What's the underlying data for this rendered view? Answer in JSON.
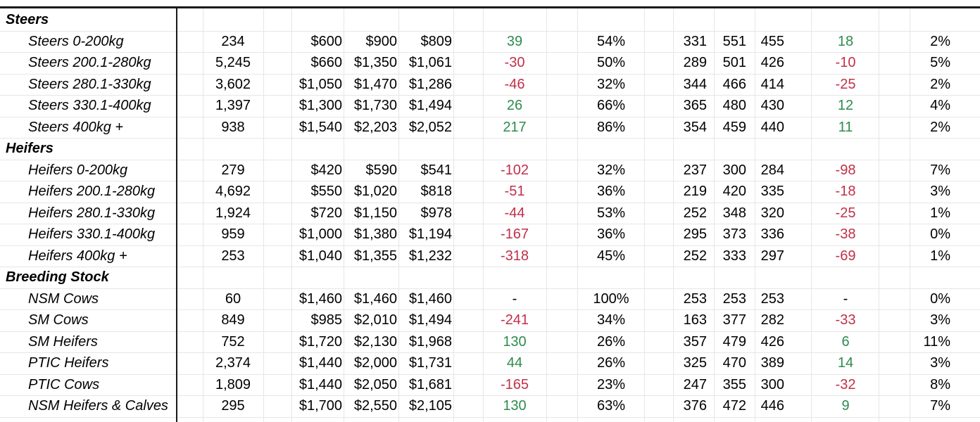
{
  "colors": {
    "positive": "#2e8b4e",
    "negative": "#c0304a"
  },
  "sections": [
    {
      "title": "Steers",
      "rows": [
        {
          "label": "Steers 0-200kg",
          "head": "234",
          "min": "$600",
          "max": "$900",
          "avg": "$809",
          "chg": "39",
          "chg_sign": "pos",
          "clear": "54%",
          "cmin": "331",
          "cmax": "551",
          "cavg": "455",
          "cchg": "18",
          "cchg_sign": "pos",
          "pct": "2%"
        },
        {
          "label": "Steers 200.1-280kg",
          "head": "5,245",
          "min": "$660",
          "max": "$1,350",
          "avg": "$1,061",
          "chg": "-30",
          "chg_sign": "neg",
          "clear": "50%",
          "cmin": "289",
          "cmax": "501",
          "cavg": "426",
          "cchg": "-10",
          "cchg_sign": "neg",
          "pct": "5%"
        },
        {
          "label": "Steers 280.1-330kg",
          "head": "3,602",
          "min": "$1,050",
          "max": "$1,470",
          "avg": "$1,286",
          "chg": "-46",
          "chg_sign": "neg",
          "clear": "32%",
          "cmin": "344",
          "cmax": "466",
          "cavg": "414",
          "cchg": "-25",
          "cchg_sign": "neg",
          "pct": "2%"
        },
        {
          "label": "Steers 330.1-400kg",
          "head": "1,397",
          "min": "$1,300",
          "max": "$1,730",
          "avg": "$1,494",
          "chg": "26",
          "chg_sign": "pos",
          "clear": "66%",
          "cmin": "365",
          "cmax": "480",
          "cavg": "430",
          "cchg": "12",
          "cchg_sign": "pos",
          "pct": "4%"
        },
        {
          "label": "Steers 400kg +",
          "head": "938",
          "min": "$1,540",
          "max": "$2,203",
          "avg": "$2,052",
          "chg": "217",
          "chg_sign": "pos",
          "clear": "86%",
          "cmin": "354",
          "cmax": "459",
          "cavg": "440",
          "cchg": "11",
          "cchg_sign": "pos",
          "pct": "2%"
        }
      ]
    },
    {
      "title": "Heifers",
      "rows": [
        {
          "label": "Heifers 0-200kg",
          "head": "279",
          "min": "$420",
          "max": "$590",
          "avg": "$541",
          "chg": "-102",
          "chg_sign": "neg",
          "clear": "32%",
          "cmin": "237",
          "cmax": "300",
          "cavg": "284",
          "cchg": "-98",
          "cchg_sign": "neg",
          "pct": "7%"
        },
        {
          "label": "Heifers 200.1-280kg",
          "head": "4,692",
          "min": "$550",
          "max": "$1,020",
          "avg": "$818",
          "chg": "-51",
          "chg_sign": "neg",
          "clear": "36%",
          "cmin": "219",
          "cmax": "420",
          "cavg": "335",
          "cchg": "-18",
          "cchg_sign": "neg",
          "pct": "3%"
        },
        {
          "label": "Heifers 280.1-330kg",
          "head": "1,924",
          "min": "$720",
          "max": "$1,150",
          "avg": "$978",
          "chg": "-44",
          "chg_sign": "neg",
          "clear": "53%",
          "cmin": "252",
          "cmax": "348",
          "cavg": "320",
          "cchg": "-25",
          "cchg_sign": "neg",
          "pct": "1%"
        },
        {
          "label": "Heifers 330.1-400kg",
          "head": "959",
          "min": "$1,000",
          "max": "$1,380",
          "avg": "$1,194",
          "chg": "-167",
          "chg_sign": "neg",
          "clear": "36%",
          "cmin": "295",
          "cmax": "373",
          "cavg": "336",
          "cchg": "-38",
          "cchg_sign": "neg",
          "pct": "0%"
        },
        {
          "label": "Heifers 400kg +",
          "head": "253",
          "min": "$1,040",
          "max": "$1,355",
          "avg": "$1,232",
          "chg": "-318",
          "chg_sign": "neg",
          "clear": "45%",
          "cmin": "252",
          "cmax": "333",
          "cavg": "297",
          "cchg": "-69",
          "cchg_sign": "neg",
          "pct": "1%"
        }
      ]
    },
    {
      "title": "Breeding Stock",
      "rows": [
        {
          "label": "NSM Cows",
          "head": "60",
          "min": "$1,460",
          "max": "$1,460",
          "avg": "$1,460",
          "chg": "-",
          "chg_sign": "none",
          "clear": "100%",
          "cmin": "253",
          "cmax": "253",
          "cavg": "253",
          "cchg": "-",
          "cchg_sign": "none",
          "pct": "0%"
        },
        {
          "label": "SM Cows",
          "head": "849",
          "min": "$985",
          "max": "$2,010",
          "avg": "$1,494",
          "chg": "-241",
          "chg_sign": "neg",
          "clear": "34%",
          "cmin": "163",
          "cmax": "377",
          "cavg": "282",
          "cchg": "-33",
          "cchg_sign": "neg",
          "pct": "3%"
        },
        {
          "label": "SM Heifers",
          "head": "752",
          "min": "$1,720",
          "max": "$2,130",
          "avg": "$1,968",
          "chg": "130",
          "chg_sign": "pos",
          "clear": "26%",
          "cmin": "357",
          "cmax": "479",
          "cavg": "426",
          "cchg": "6",
          "cchg_sign": "pos",
          "pct": "11%"
        },
        {
          "label": "PTIC Heifers",
          "head": "2,374",
          "min": "$1,440",
          "max": "$2,000",
          "avg": "$1,731",
          "chg": "44",
          "chg_sign": "pos",
          "clear": "26%",
          "cmin": "325",
          "cmax": "470",
          "cavg": "389",
          "cchg": "14",
          "cchg_sign": "pos",
          "pct": "3%"
        },
        {
          "label": "PTIC Cows",
          "head": "1,809",
          "min": "$1,440",
          "max": "$2,050",
          "avg": "$1,681",
          "chg": "-165",
          "chg_sign": "neg",
          "clear": "23%",
          "cmin": "247",
          "cmax": "355",
          "cavg": "300",
          "cchg": "-32",
          "cchg_sign": "neg",
          "pct": "8%"
        },
        {
          "label": "NSM Heifers & Calves",
          "head": "295",
          "min": "$1,700",
          "max": "$2,550",
          "avg": "$2,105",
          "chg": "130",
          "chg_sign": "pos",
          "clear": "63%",
          "cmin": "376",
          "cmax": "472",
          "cavg": "446",
          "cchg": "9",
          "cchg_sign": "pos",
          "pct": "7%"
        }
      ]
    }
  ]
}
